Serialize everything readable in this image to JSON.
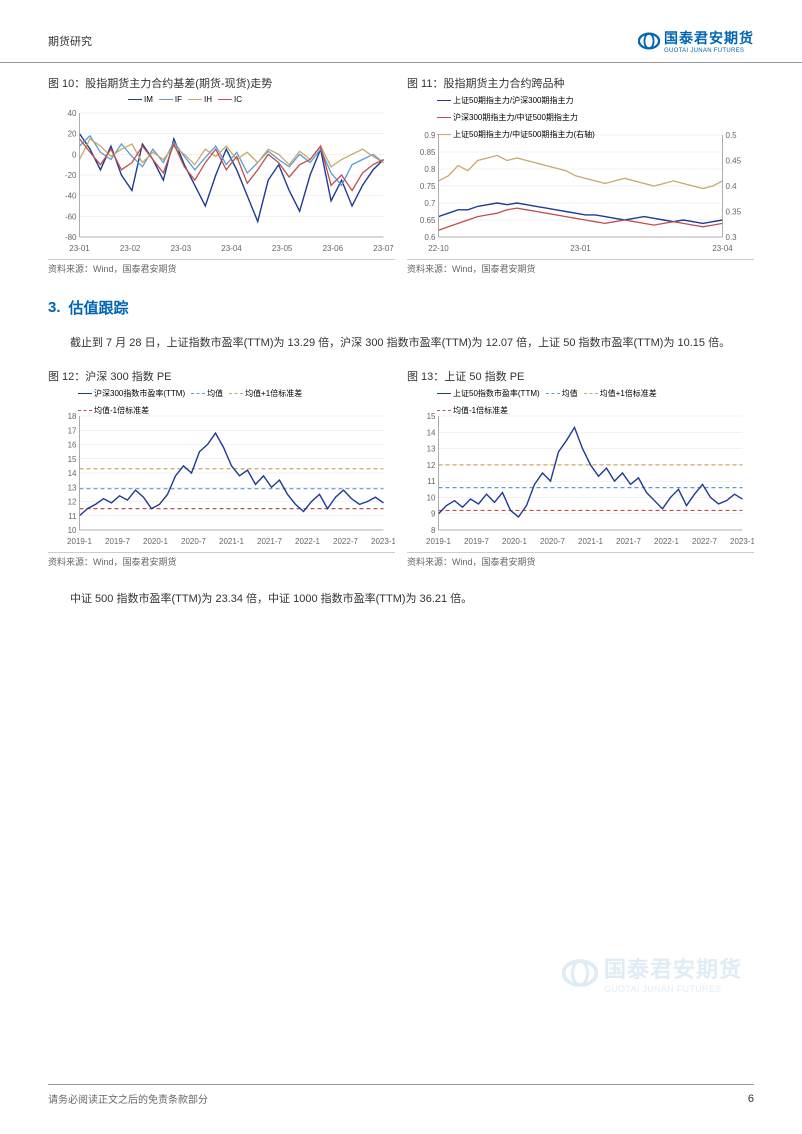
{
  "header": {
    "left": "期货研究",
    "logo_cn": "国泰君安期货",
    "logo_en": "GUOTAI JUNAN FUTURES"
  },
  "footer": {
    "text": "请务必阅读正文之后的免责条款部分",
    "page": "6"
  },
  "section": {
    "num": "3.",
    "title": "估值跟踪"
  },
  "body1": "截止到 7 月 28 日，上证指数市盈率(TTM)为 13.29 倍，沪深 300 指数市盈率(TTM)为 12.07 倍，上证 50 指数市盈率(TTM)为 10.15 倍。",
  "body2": "中证 500 指数市盈率(TTM)为 23.34 倍，中证 1000 指数市盈率(TTM)为 36.21 倍。",
  "source": "资料来源：Wind，国泰君安期货",
  "chart10": {
    "title": "图 10：股指期货主力合约基差(期货-现货)走势",
    "legend": [
      {
        "label": "IM",
        "color": "#1f3a93"
      },
      {
        "label": "IF",
        "color": "#5b9bd5"
      },
      {
        "label": "IH",
        "color": "#c9a86a"
      },
      {
        "label": "IC",
        "color": "#c0504d"
      }
    ],
    "xlabels": [
      "23-01",
      "23-02",
      "23-03",
      "23-04",
      "23-05",
      "23-06",
      "23-07"
    ],
    "ylim": [
      -80,
      40
    ],
    "yticks": [
      -80,
      -60,
      -40,
      -20,
      0,
      20,
      40
    ],
    "background": "#ffffff",
    "grid": "#e5e5e5",
    "series": {
      "IM": [
        20,
        5,
        -15,
        8,
        -20,
        -35,
        10,
        -5,
        -25,
        15,
        -10,
        -30,
        -50,
        -20,
        5,
        -15,
        -40,
        -65,
        -25,
        -10,
        -35,
        -55,
        -20,
        5,
        -45,
        -25,
        -50,
        -30,
        -15,
        -5
      ],
      "IF": [
        8,
        18,
        2,
        -5,
        10,
        -2,
        -12,
        5,
        -8,
        12,
        -2,
        -15,
        -3,
        8,
        -10,
        2,
        -18,
        -8,
        3,
        -5,
        -12,
        0,
        -8,
        5,
        -18,
        -30,
        -10,
        -5,
        0,
        -8
      ],
      "IH": [
        -5,
        15,
        8,
        -2,
        5,
        10,
        -8,
        2,
        -5,
        8,
        0,
        -10,
        5,
        -2,
        8,
        -5,
        2,
        -8,
        5,
        0,
        -10,
        3,
        -5,
        8,
        -12,
        -5,
        0,
        5,
        -2,
        -8
      ],
      "IC": [
        15,
        2,
        -10,
        5,
        -15,
        -8,
        8,
        -5,
        -18,
        10,
        -12,
        -25,
        -8,
        5,
        -15,
        -2,
        -28,
        -15,
        0,
        -8,
        -22,
        -10,
        -5,
        8,
        -30,
        -20,
        -35,
        -18,
        -10,
        -5
      ]
    }
  },
  "chart11": {
    "title": "图 11：股指期货主力合约跨品种",
    "legend": [
      {
        "label": "上证50期指主力/沪深300期指主力",
        "color": "#1f3a93"
      },
      {
        "label": "沪深300期指主力/中证500期指主力",
        "color": "#c0504d"
      },
      {
        "label": "上证50期指主力/中证500期指主力(右轴)",
        "color": "#c9a86a"
      }
    ],
    "xlabels": [
      "22-10",
      "23-01",
      "23-04"
    ],
    "ylim_l": [
      0.6,
      0.9
    ],
    "yticks_l": [
      0.6,
      0.65,
      0.7,
      0.75,
      0.8,
      0.85,
      0.9
    ],
    "ylim_r": [
      0.3,
      0.5
    ],
    "yticks_r": [
      0.3,
      0.35,
      0.4,
      0.45,
      0.5
    ],
    "background": "#ffffff",
    "grid": "#e5e5e5",
    "series": {
      "s1": [
        0.66,
        0.67,
        0.68,
        0.68,
        0.69,
        0.695,
        0.7,
        0.695,
        0.7,
        0.695,
        0.69,
        0.685,
        0.68,
        0.675,
        0.67,
        0.665,
        0.665,
        0.66,
        0.655,
        0.65,
        0.655,
        0.66,
        0.655,
        0.65,
        0.645,
        0.65,
        0.645,
        0.64,
        0.645,
        0.65
      ],
      "s2": [
        0.62,
        0.63,
        0.64,
        0.65,
        0.66,
        0.665,
        0.67,
        0.68,
        0.685,
        0.68,
        0.675,
        0.67,
        0.665,
        0.66,
        0.655,
        0.65,
        0.645,
        0.64,
        0.645,
        0.65,
        0.645,
        0.64,
        0.635,
        0.64,
        0.645,
        0.64,
        0.635,
        0.63,
        0.635,
        0.64
      ],
      "s3": [
        0.41,
        0.42,
        0.44,
        0.43,
        0.45,
        0.455,
        0.46,
        0.45,
        0.455,
        0.45,
        0.445,
        0.44,
        0.435,
        0.43,
        0.42,
        0.415,
        0.41,
        0.405,
        0.41,
        0.415,
        0.41,
        0.405,
        0.4,
        0.405,
        0.41,
        0.405,
        0.4,
        0.395,
        0.4,
        0.41
      ]
    }
  },
  "chart12": {
    "title": "图 12：沪深 300 指数 PE",
    "legend": [
      {
        "label": "沪深300指数市盈率(TTM)",
        "color": "#1f3a93",
        "dash": "solid"
      },
      {
        "label": "均值",
        "color": "#5b9bd5",
        "dash": "dash"
      },
      {
        "label": "均值+1倍标准差",
        "color": "#c9a86a",
        "dash": "dash"
      },
      {
        "label": "均值-1倍标准差",
        "color": "#c0504d",
        "dash": "dash"
      }
    ],
    "xlabels": [
      "2019-1",
      "2019-7",
      "2020-1",
      "2020-7",
      "2021-1",
      "2021-7",
      "2022-1",
      "2022-7",
      "2023-1"
    ],
    "ylim": [
      10,
      18
    ],
    "yticks": [
      10,
      11,
      12,
      13,
      14,
      15,
      16,
      17,
      18
    ],
    "mean": 12.9,
    "upper": 14.3,
    "lower": 11.5,
    "background": "#ffffff",
    "grid": "#e5e5e5",
    "series": [
      11.0,
      11.5,
      11.8,
      12.2,
      11.9,
      12.4,
      12.1,
      12.8,
      12.3,
      11.5,
      11.8,
      12.5,
      13.8,
      14.5,
      14.0,
      15.5,
      16.0,
      16.8,
      15.8,
      14.5,
      13.8,
      14.2,
      13.2,
      13.8,
      13.0,
      13.5,
      12.5,
      11.8,
      11.3,
      12.0,
      12.5,
      11.5,
      12.3,
      12.8,
      12.2,
      11.8,
      12.0,
      12.3,
      11.9
    ]
  },
  "chart13": {
    "title": "图 13：上证 50 指数 PE",
    "legend": [
      {
        "label": "上证50指数市盈率(TTM)",
        "color": "#1f3a93",
        "dash": "solid"
      },
      {
        "label": "均值",
        "color": "#5b9bd5",
        "dash": "dash"
      },
      {
        "label": "均值+1倍标准差",
        "color": "#c9a86a",
        "dash": "dash"
      },
      {
        "label": "均值-1倍标准差",
        "color": "#c0504d",
        "dash": "dash"
      }
    ],
    "xlabels": [
      "2019-1",
      "2019-7",
      "2020-1",
      "2020-7",
      "2021-1",
      "2021-7",
      "2022-1",
      "2022-7",
      "2023-1"
    ],
    "ylim": [
      8,
      15
    ],
    "yticks": [
      8,
      9,
      10,
      11,
      12,
      13,
      14,
      15
    ],
    "mean": 10.6,
    "upper": 12.0,
    "lower": 9.2,
    "background": "#ffffff",
    "grid": "#e5e5e5",
    "series": [
      9.0,
      9.5,
      9.8,
      9.4,
      9.9,
      9.6,
      10.2,
      9.7,
      10.3,
      9.2,
      8.8,
      9.5,
      10.8,
      11.5,
      11.0,
      12.8,
      13.5,
      14.3,
      13.0,
      12.0,
      11.3,
      11.8,
      11.0,
      11.5,
      10.8,
      11.2,
      10.3,
      9.8,
      9.3,
      10.0,
      10.5,
      9.5,
      10.2,
      10.8,
      10.0,
      9.6,
      9.8,
      10.2,
      9.9
    ]
  }
}
